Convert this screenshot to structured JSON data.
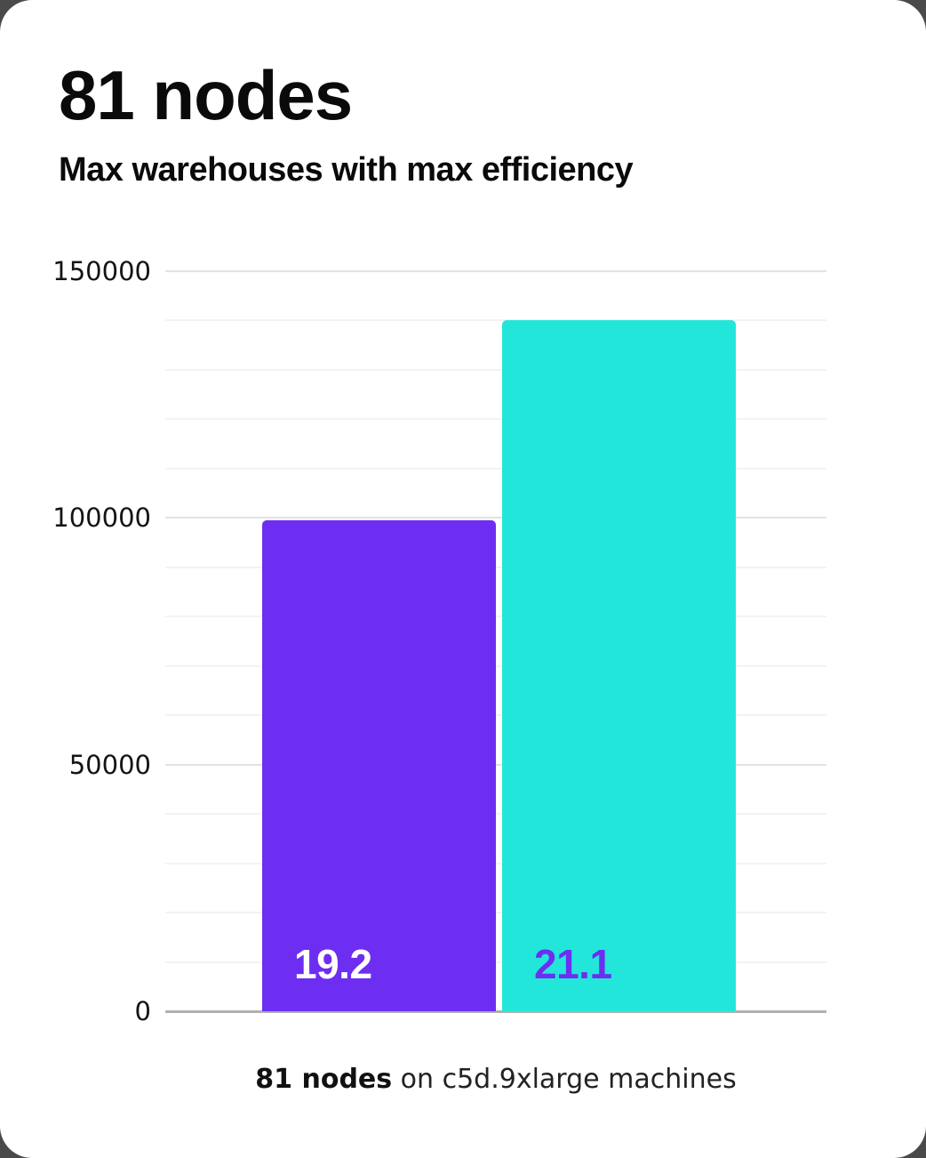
{
  "header": {
    "title": "81 nodes",
    "subtitle": "Max warehouses with max efficiency"
  },
  "chart_data": {
    "type": "bar",
    "title": "81 nodes",
    "subtitle": "Max warehouses with max efficiency",
    "categories": [
      "19.2",
      "21.1"
    ],
    "values": [
      99500,
      140000
    ],
    "bar_labels": [
      "19.2",
      "21.1"
    ],
    "bar_colors": [
      "#6d2ef1",
      "#23e6da"
    ],
    "bar_label_colors": [
      "#ffffff",
      "#6d2ef1"
    ],
    "ylim": [
      0,
      150000
    ],
    "yticks": [
      0,
      50000,
      100000,
      150000
    ],
    "major_grid_step": 50000,
    "minor_grid_step": 10000,
    "grid": true,
    "legend": false,
    "xlabel": "",
    "ylabel": ""
  },
  "caption": {
    "bold": "81 nodes",
    "rest": " on c5d.9xlarge machines"
  }
}
